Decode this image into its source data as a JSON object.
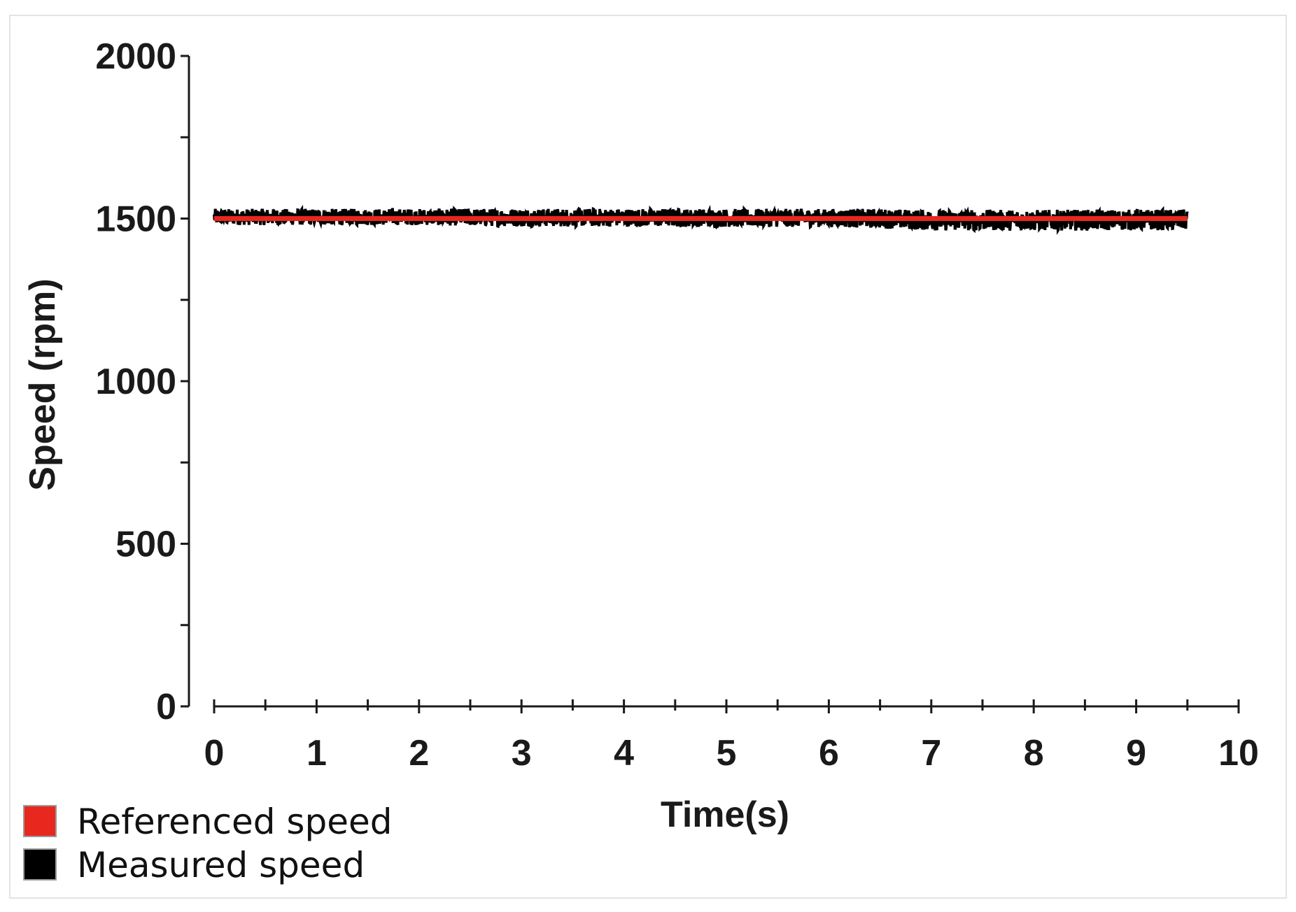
{
  "chart_data": {
    "type": "line",
    "title": "",
    "xlabel": "Time(s)",
    "ylabel": "Speed (rpm)",
    "xlim": [
      0,
      10
    ],
    "ylim": [
      0,
      2000
    ],
    "x_ticks": [
      0,
      1,
      2,
      3,
      4,
      5,
      6,
      7,
      8,
      9,
      10
    ],
    "x_tick_labels": [
      "0",
      "1",
      "2",
      "3",
      "4",
      "5",
      "6",
      "7",
      "8",
      "9",
      "10"
    ],
    "x_minor_step": 0.5,
    "y_ticks": [
      0,
      500,
      1000,
      1500,
      2000
    ],
    "y_tick_labels": [
      "0",
      "500",
      "1000",
      "1500",
      "2000"
    ],
    "y_minor_step": 250,
    "grid": false,
    "legend_position": "bottom-left",
    "series": [
      {
        "name": "Referenced speed",
        "color": "#e8281e",
        "x": [
          0,
          9.5
        ],
        "y": [
          1500,
          1500
        ]
      },
      {
        "name": "Measured speed",
        "color": "#000000",
        "x": [
          0,
          1,
          2,
          3,
          4,
          5,
          6,
          6.5,
          7,
          8,
          9,
          9.5
        ],
        "y": [
          1505,
          1505,
          1505,
          1503,
          1503,
          1502,
          1502,
          1500,
          1495,
          1495,
          1496,
          1496
        ],
        "noise_band_rpm": [
          25,
          25,
          25,
          28,
          28,
          28,
          28,
          30,
          32,
          32,
          32,
          32
        ]
      }
    ]
  }
}
